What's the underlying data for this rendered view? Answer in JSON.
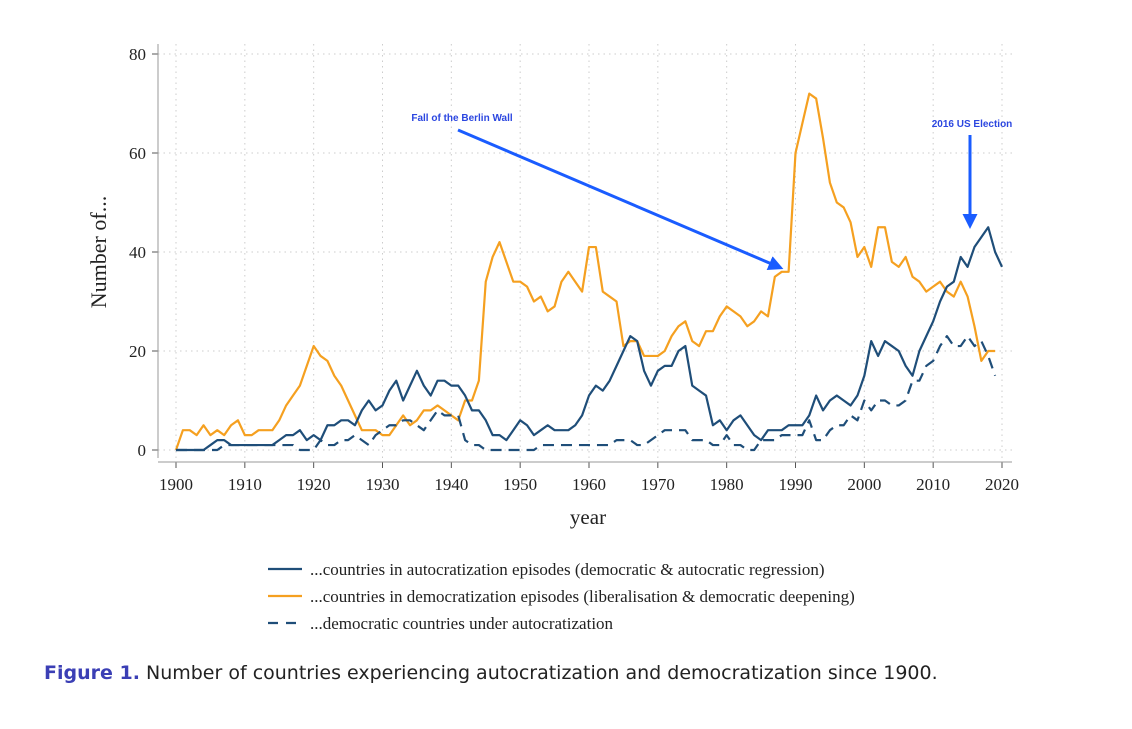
{
  "chart_data": {
    "type": "line",
    "xlabel": "year",
    "ylabel": "Number of...",
    "xlim": [
      1900,
      2020
    ],
    "ylim": [
      0,
      80
    ],
    "xticks": [
      1900,
      1910,
      1920,
      1930,
      1940,
      1950,
      1960,
      1970,
      1980,
      1990,
      2000,
      2010,
      2020
    ],
    "yticks": [
      0,
      20,
      40,
      60,
      80
    ],
    "grid": true,
    "legend_position": "bottom",
    "x_start": 1900,
    "series": [
      {
        "name": "...countries in autocratization episodes (democratic & autocratic regression)",
        "color": "#1f4e79",
        "style": "solid",
        "values": [
          0,
          0,
          0,
          0,
          0,
          1,
          2,
          2,
          1,
          1,
          1,
          1,
          1,
          1,
          1,
          2,
          3,
          3,
          4,
          2,
          3,
          2,
          5,
          5,
          6,
          6,
          5,
          8,
          10,
          8,
          9,
          12,
          14,
          10,
          13,
          16,
          13,
          11,
          14,
          14,
          13,
          13,
          11,
          8,
          8,
          6,
          3,
          3,
          2,
          4,
          6,
          5,
          3,
          4,
          5,
          4,
          4,
          4,
          5,
          7,
          11,
          13,
          12,
          14,
          17,
          20,
          23,
          22,
          16,
          13,
          16,
          17,
          17,
          20,
          21,
          13,
          12,
          11,
          5,
          6,
          4,
          6,
          7,
          5,
          3,
          2,
          4,
          4,
          4,
          5,
          5,
          5,
          7,
          11,
          8,
          10,
          11,
          10,
          9,
          11,
          15,
          22,
          19,
          22,
          21,
          20,
          17,
          15,
          20,
          23,
          26,
          30,
          33,
          34,
          39,
          37,
          41,
          43,
          45,
          40,
          37
        ]
      },
      {
        "name": "...countries in democratization episodes (liberalisation & democratic deepening)",
        "color": "#f5a020",
        "style": "solid",
        "values": [
          0,
          4,
          4,
          3,
          5,
          3,
          4,
          3,
          5,
          6,
          3,
          3,
          4,
          4,
          4,
          6,
          9,
          11,
          13,
          17,
          21,
          19,
          18,
          15,
          13,
          10,
          7,
          4,
          4,
          4,
          3,
          3,
          5,
          7,
          5,
          6,
          8,
          8,
          9,
          8,
          7,
          6,
          10,
          10,
          14,
          34,
          39,
          42,
          38,
          34,
          34,
          33,
          30,
          31,
          28,
          29,
          34,
          36,
          34,
          32,
          41,
          41,
          32,
          31,
          30,
          21,
          22,
          22,
          19,
          19,
          19,
          20,
          23,
          25,
          26,
          22,
          21,
          24,
          24,
          27,
          29,
          28,
          27,
          25,
          26,
          28,
          27,
          35,
          36,
          36,
          60,
          66,
          72,
          71,
          63,
          54,
          50,
          49,
          46,
          39,
          41,
          37,
          45,
          45,
          38,
          37,
          39,
          35,
          34,
          32,
          33,
          34,
          32,
          31,
          34,
          31,
          25,
          18,
          20,
          20
        ]
      },
      {
        "name": "...democratic countries under autocratization",
        "color": "#1f4e79",
        "style": "dashed",
        "values": [
          0,
          0,
          0,
          0,
          0,
          0,
          0,
          1,
          1,
          1,
          1,
          1,
          1,
          1,
          1,
          1,
          1,
          1,
          0,
          0,
          0,
          2,
          1,
          1,
          2,
          2,
          3,
          2,
          1,
          3,
          4,
          5,
          5,
          6,
          6,
          5,
          4,
          6,
          8,
          7,
          7,
          7,
          2,
          1,
          1,
          0,
          0,
          0,
          0,
          0,
          0,
          0,
          0,
          1,
          1,
          1,
          1,
          1,
          1,
          1,
          1,
          1,
          1,
          1,
          2,
          2,
          2,
          1,
          1,
          2,
          3,
          4,
          4,
          4,
          4,
          2,
          2,
          2,
          1,
          1,
          3,
          1,
          1,
          0,
          0,
          2,
          2,
          2,
          3,
          3,
          3,
          3,
          6,
          2,
          2,
          4,
          5,
          5,
          7,
          6,
          10,
          8,
          10,
          10,
          9,
          9,
          10,
          14,
          14,
          17,
          18,
          21,
          23,
          21,
          21,
          23,
          21,
          22,
          19,
          15
        ]
      }
    ],
    "annotations": [
      {
        "text": "Fall of the Berlin Wall",
        "target_year": 1989,
        "target_value": 36
      },
      {
        "text": "2016 US Election",
        "target_year": 2016,
        "target_value": 44
      }
    ]
  },
  "caption": {
    "label": "Figure 1.",
    "text": " Number of countries experiencing autocratization and democratization since 1900."
  }
}
